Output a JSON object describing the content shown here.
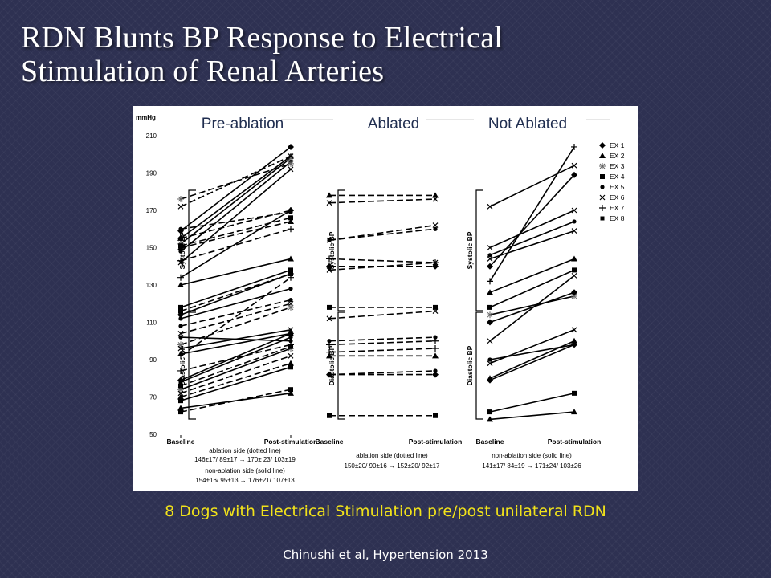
{
  "slide": {
    "title_line1": "RDN Blunts BP Response to Electrical",
    "title_line2": "Stimulation of Renal Arteries",
    "caption": "8 Dogs with Electrical Stimulation pre/post unilateral RDN",
    "citation": "Chinushi et al, Hypertension 2013",
    "colors": {
      "background": "#2e3152",
      "title": "#ffffff",
      "caption": "#f1e21a",
      "citation": "#ffffff"
    }
  },
  "chart_data": {
    "type": "line",
    "yunit": "mmHg",
    "ylim": [
      50,
      210
    ],
    "yticks": [
      50,
      70,
      90,
      110,
      130,
      150,
      170,
      190,
      210
    ],
    "xcategories": [
      "Baseline",
      "Post-stimulation"
    ],
    "grid": false,
    "legend": {
      "position": "top-right",
      "entries": [
        {
          "label": "EX 1",
          "marker": "diamond"
        },
        {
          "label": "EX 2",
          "marker": "triangle"
        },
        {
          "label": "EX 3",
          "marker": "asterisk"
        },
        {
          "label": "EX 4",
          "marker": "square"
        },
        {
          "label": "EX 5",
          "marker": "circle"
        },
        {
          "label": "EX 6",
          "marker": "x"
        },
        {
          "label": "EX 7",
          "marker": "plus"
        },
        {
          "label": "EX 8",
          "marker": "small-square"
        }
      ]
    },
    "panels": [
      {
        "title": "Pre-ablation",
        "bracket_labels": [
          "Systolic BP",
          "Diastolic BP"
        ],
        "notes": [
          "ablation side (dotted line)",
          "146±17/ 89±17 → 170± 23/ 103±19",
          "non-ablation side (solid line)",
          "154±16/ 95±13 → 176±21/ 107±13"
        ],
        "lines": [
          {
            "style": "solid",
            "marker": "diamond",
            "baseline": 159,
            "post": 204
          },
          {
            "style": "solid",
            "marker": "triangle",
            "baseline": 155,
            "post": 199
          },
          {
            "style": "solid",
            "marker": "asterisk",
            "baseline": 152,
            "post": 198
          },
          {
            "style": "solid",
            "marker": "circle",
            "baseline": 148,
            "post": 196
          },
          {
            "style": "solid",
            "marker": "x",
            "baseline": 142,
            "post": 192
          },
          {
            "style": "solid",
            "marker": "plus",
            "baseline": 134,
            "post": 170
          },
          {
            "style": "dashed",
            "marker": "asterisk",
            "baseline": 176,
            "post": 195
          },
          {
            "style": "dashed",
            "marker": "x",
            "baseline": 172,
            "post": 199
          },
          {
            "style": "dashed",
            "marker": "circle",
            "baseline": 160,
            "post": 169
          },
          {
            "style": "dashed",
            "marker": "diamond",
            "baseline": 155,
            "post": 170
          },
          {
            "style": "dashed",
            "marker": "square",
            "baseline": 151,
            "post": 166
          },
          {
            "style": "dashed",
            "marker": "triangle",
            "baseline": 150,
            "post": 164
          },
          {
            "style": "dashed",
            "marker": "plus",
            "baseline": 143,
            "post": 160
          },
          {
            "style": "solid",
            "marker": "triangle",
            "baseline": 130,
            "post": 144
          },
          {
            "style": "solid",
            "marker": "square",
            "baseline": 118,
            "post": 138
          },
          {
            "style": "solid",
            "marker": "diamond",
            "baseline": 114,
            "post": 136
          },
          {
            "style": "solid",
            "marker": "circle",
            "baseline": 112,
            "post": 128
          },
          {
            "style": "dashed",
            "marker": "square",
            "baseline": 116,
            "post": 136
          },
          {
            "style": "dashed",
            "marker": "circle",
            "baseline": 108,
            "post": 122
          },
          {
            "style": "dashed",
            "marker": "x",
            "baseline": 104,
            "post": 120
          },
          {
            "style": "dashed",
            "marker": "asterisk",
            "baseline": 98,
            "post": 118
          },
          {
            "style": "dashed",
            "marker": "plus",
            "baseline": 92,
            "post": 134
          },
          {
            "style": "solid",
            "marker": "circle",
            "baseline": 102,
            "post": 100
          },
          {
            "style": "solid",
            "marker": "x",
            "baseline": 96,
            "post": 106
          },
          {
            "style": "solid",
            "marker": "triangle",
            "baseline": 93,
            "post": 104
          },
          {
            "style": "solid",
            "marker": "diamond",
            "baseline": 79,
            "post": 104
          },
          {
            "style": "solid",
            "marker": "circle",
            "baseline": 78,
            "post": 102
          },
          {
            "style": "solid",
            "marker": "asterisk",
            "baseline": 74,
            "post": 96
          },
          {
            "style": "solid",
            "marker": "square",
            "baseline": 68,
            "post": 86
          },
          {
            "style": "solid",
            "marker": "triangle",
            "baseline": 64,
            "post": 72
          },
          {
            "style": "dashed",
            "marker": "plus",
            "baseline": 84,
            "post": 98
          },
          {
            "style": "dashed",
            "marker": "square",
            "baseline": 76,
            "post": 97
          },
          {
            "style": "dashed",
            "marker": "x",
            "baseline": 72,
            "post": 92
          },
          {
            "style": "dashed",
            "marker": "triangle",
            "baseline": 70,
            "post": 88
          },
          {
            "style": "dashed",
            "marker": "square",
            "baseline": 62,
            "post": 74
          }
        ]
      },
      {
        "title": "Ablated",
        "bracket_labels": [
          "Systolic BP",
          "Diastolic BP"
        ],
        "notes": [
          "ablation side (dotted line)",
          "150±20/ 90±16 → 152±20/ 92±17"
        ],
        "lines": [
          {
            "style": "dashed",
            "marker": "triangle",
            "baseline": 178,
            "post": 178
          },
          {
            "style": "dashed",
            "marker": "x",
            "baseline": 174,
            "post": 176
          },
          {
            "style": "dashed",
            "marker": "circle",
            "baseline": 154,
            "post": 160
          },
          {
            "style": "dashed",
            "marker": "x",
            "baseline": 154,
            "post": 162
          },
          {
            "style": "dashed",
            "marker": "plus",
            "baseline": 144,
            "post": 142
          },
          {
            "style": "dashed",
            "marker": "diamond",
            "baseline": 140,
            "post": 140
          },
          {
            "style": "dashed",
            "marker": "x",
            "baseline": 138,
            "post": 142
          },
          {
            "style": "dashed",
            "marker": "square",
            "baseline": 118,
            "post": 118
          },
          {
            "style": "dashed",
            "marker": "x",
            "baseline": 112,
            "post": 116
          },
          {
            "style": "dashed",
            "marker": "circle",
            "baseline": 100,
            "post": 102
          },
          {
            "style": "dashed",
            "marker": "plus",
            "baseline": 98,
            "post": 100
          },
          {
            "style": "dashed",
            "marker": "plus",
            "baseline": 94,
            "post": 96
          },
          {
            "style": "dashed",
            "marker": "triangle",
            "baseline": 92,
            "post": 92
          },
          {
            "style": "dashed",
            "marker": "circle",
            "baseline": 82,
            "post": 84
          },
          {
            "style": "dashed",
            "marker": "diamond",
            "baseline": 82,
            "post": 82
          },
          {
            "style": "dashed",
            "marker": "square",
            "baseline": 60,
            "post": 60
          }
        ]
      },
      {
        "title": "Not Ablated",
        "bracket_labels": [
          "Systolic BP",
          "Diastolic BP"
        ],
        "notes": [
          "non-ablation side (solid line)",
          "141±17/ 84±19 → 171±24/ 103±26"
        ],
        "lines": [
          {
            "style": "solid",
            "marker": "plus",
            "baseline": 132,
            "post": 204
          },
          {
            "style": "solid",
            "marker": "x",
            "baseline": 172,
            "post": 194
          },
          {
            "style": "solid",
            "marker": "diamond",
            "baseline": 140,
            "post": 189
          },
          {
            "style": "solid",
            "marker": "x",
            "baseline": 150,
            "post": 170
          },
          {
            "style": "solid",
            "marker": "circle",
            "baseline": 146,
            "post": 164
          },
          {
            "style": "solid",
            "marker": "x",
            "baseline": 144,
            "post": 159
          },
          {
            "style": "solid",
            "marker": "triangle",
            "baseline": 126,
            "post": 144
          },
          {
            "style": "solid",
            "marker": "square",
            "baseline": 118,
            "post": 138
          },
          {
            "style": "solid",
            "marker": "asterisk",
            "baseline": 114,
            "post": 124
          },
          {
            "style": "solid",
            "marker": "diamond",
            "baseline": 110,
            "post": 126
          },
          {
            "style": "solid",
            "marker": "x",
            "baseline": 100,
            "post": 135
          },
          {
            "style": "solid",
            "marker": "circle",
            "baseline": 90,
            "post": 98
          },
          {
            "style": "solid",
            "marker": "x",
            "baseline": 88,
            "post": 106
          },
          {
            "style": "solid",
            "marker": "triangle",
            "baseline": 80,
            "post": 100
          },
          {
            "style": "solid",
            "marker": "diamond",
            "baseline": 79,
            "post": 98
          },
          {
            "style": "solid",
            "marker": "square",
            "baseline": 62,
            "post": 72
          },
          {
            "style": "solid",
            "marker": "triangle",
            "baseline": 58,
            "post": 62
          }
        ]
      }
    ]
  }
}
